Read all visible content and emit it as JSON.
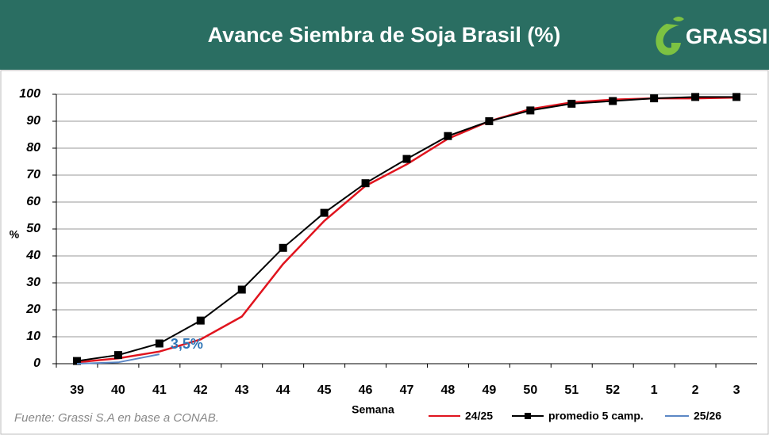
{
  "logo": "GRASSI",
  "chart_data": {
    "type": "line",
    "title": "Avance Siembra de Soja Brasil (%)",
    "xlabel": "Semana",
    "ylabel": "%",
    "source": "Fuente: Grassi S.A en base a CONAB.",
    "annotation": "3,5%",
    "categories": [
      "39",
      "40",
      "41",
      "42",
      "43",
      "44",
      "45",
      "46",
      "47",
      "48",
      "49",
      "50",
      "51",
      "52",
      "1",
      "2",
      "3"
    ],
    "series": [
      {
        "name": "24/25",
        "color": "#e0141e",
        "marker": null,
        "values": [
          0.5,
          2,
          4.5,
          9,
          17.5,
          37,
          53,
          66,
          74,
          83.5,
          90,
          94.5,
          97,
          98,
          98.5,
          98.5,
          98.8
        ]
      },
      {
        "name": "promedio 5 camp.",
        "color": "#000000",
        "marker": "square",
        "values": [
          1,
          3.2,
          7.5,
          16,
          27.5,
          43,
          56,
          67,
          76,
          84.5,
          90,
          94,
          96.5,
          97.5,
          98.5,
          99,
          99
        ]
      },
      {
        "name": "25/26",
        "color": "#5b87c5",
        "marker": null,
        "values": [
          0,
          0.5,
          3.5,
          null,
          null,
          null,
          null,
          null,
          null,
          null,
          null,
          null,
          null,
          null,
          null,
          null,
          null
        ]
      }
    ],
    "ylim": [
      0,
      100
    ],
    "yticks": [
      0,
      10,
      20,
      30,
      40,
      50,
      60,
      70,
      80,
      90,
      100
    ],
    "grid": true,
    "legend": "bottom-right"
  }
}
